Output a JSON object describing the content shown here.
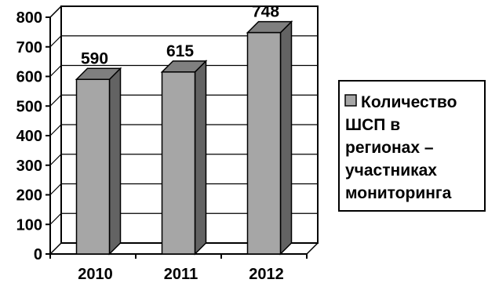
{
  "chart_data": {
    "type": "bar",
    "categories": [
      "2010",
      "2011",
      "2012"
    ],
    "series": [
      {
        "name": "Количество ШСП в регионах – участниках мониторинга",
        "values": [
          590,
          615,
          748
        ]
      }
    ],
    "data_labels": [
      "590",
      "615",
      "748"
    ],
    "ylim": [
      0,
      800
    ],
    "yticks": [
      "0",
      "100",
      "200",
      "300",
      "400",
      "500",
      "600",
      "700",
      "800"
    ],
    "grid": true,
    "legend_position": "right",
    "legend_lines": [
      "Количество",
      "ШСП в",
      "регионах –",
      "участниках",
      "мониторинга"
    ],
    "colors": {
      "bar_front": "#a6a6a6",
      "bar_side": "#636363",
      "bar_top": "#7f7f7f",
      "legend_swatch": "#a6a6a6"
    }
  }
}
